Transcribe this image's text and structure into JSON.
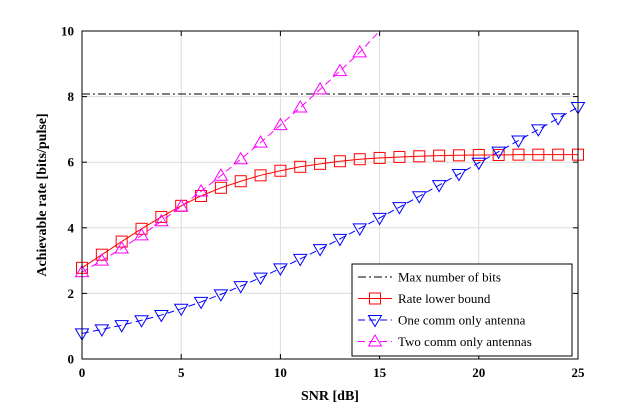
{
  "chart_data": {
    "type": "line",
    "xlabel": "SNR [dB]",
    "ylabel": "Achievable rate [bits/pulse]",
    "xlim": [
      0,
      25
    ],
    "ylim": [
      0,
      10
    ],
    "xticks": [
      0,
      5,
      10,
      15,
      20,
      25
    ],
    "yticks": [
      0,
      2,
      4,
      6,
      8,
      10
    ],
    "xtick_labels": [
      "0",
      "5",
      "10",
      "15",
      "20",
      "25"
    ],
    "ytick_labels": [
      "0",
      "2",
      "4",
      "6",
      "8",
      "10"
    ],
    "grid": true,
    "legend_position": "bottom-right",
    "series": [
      {
        "name": "Max number of bits",
        "style": "dash-dot",
        "color": "#000000",
        "marker": "none",
        "x": [
          0,
          25
        ],
        "y": [
          8.08,
          8.08
        ]
      },
      {
        "name": "Rate lower bound",
        "style": "solid",
        "color": "#ff0000",
        "marker": "square",
        "x": [
          0,
          1,
          2,
          3,
          4,
          5,
          6,
          7,
          8,
          9,
          10,
          11,
          12,
          13,
          14,
          15,
          16,
          17,
          18,
          19,
          20,
          21,
          22,
          23,
          24,
          25
        ],
        "y": [
          2.78,
          3.18,
          3.58,
          3.97,
          4.33,
          4.67,
          4.97,
          5.22,
          5.42,
          5.6,
          5.74,
          5.86,
          5.95,
          6.03,
          6.09,
          6.13,
          6.16,
          6.18,
          6.2,
          6.21,
          6.22,
          6.22,
          6.23,
          6.23,
          6.23,
          6.23
        ]
      },
      {
        "name": "One comm only antenna",
        "style": "dashed",
        "color": "#0000ff",
        "marker": "triangle-down",
        "x": [
          0,
          1,
          2,
          3,
          4,
          5,
          6,
          7,
          8,
          9,
          10,
          11,
          12,
          13,
          14,
          15,
          16,
          17,
          18,
          19,
          20,
          21,
          22,
          23,
          24,
          25
        ],
        "y": [
          0.78,
          0.9,
          1.03,
          1.18,
          1.34,
          1.53,
          1.74,
          1.97,
          2.22,
          2.48,
          2.76,
          3.05,
          3.35,
          3.66,
          3.98,
          4.3,
          4.63,
          4.96,
          5.3,
          5.64,
          5.98,
          6.32,
          6.66,
          7.0,
          7.34,
          7.68
        ]
      },
      {
        "name": "Two comm only antennas",
        "style": "dashed",
        "color": "#ff00ff",
        "marker": "triangle-up",
        "x": [
          0,
          1,
          2,
          3,
          4,
          5,
          6,
          7,
          8,
          9,
          10,
          11,
          12,
          13,
          14,
          15
        ],
        "y": [
          2.65,
          3.0,
          3.37,
          3.77,
          4.2,
          4.65,
          5.11,
          5.59,
          6.09,
          6.6,
          7.13,
          7.67,
          8.22,
          8.78,
          9.35,
          10.0
        ]
      }
    ]
  }
}
